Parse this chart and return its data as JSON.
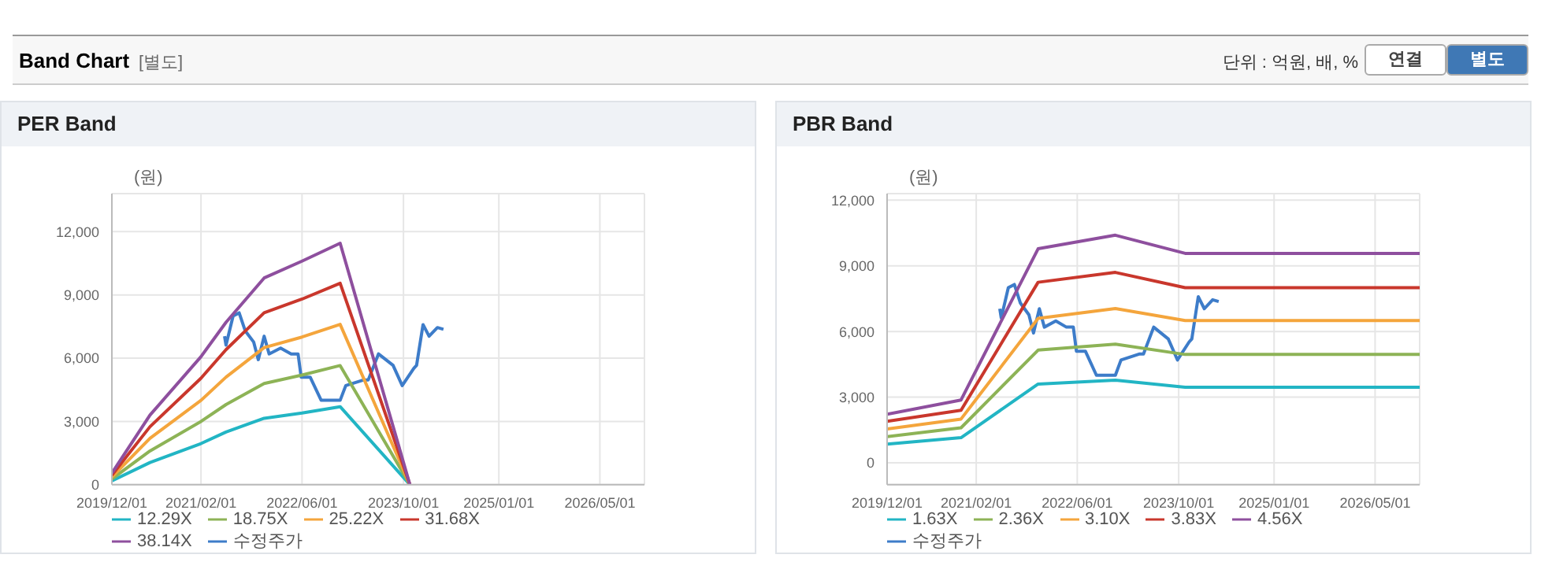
{
  "chart_data": [
    {
      "type": "line",
      "title": "PER Band",
      "ylabel": "(원)",
      "annotations": [
        "Band Chart",
        "[별도]",
        "단위 : 억원, 배, %",
        "연결",
        "별도"
      ],
      "grid": true,
      "legend": "bottom",
      "marker": "none",
      "line_style": "solid",
      "xlim": [
        "2019-12-01",
        "2026-12-01"
      ],
      "xticks": [
        {
          "value": "2019-12-01",
          "label": "2019/12/01"
        },
        {
          "value": "2021-02-01",
          "label": "2021/02/01"
        },
        {
          "value": "2022-06-01",
          "label": "2022/06/01"
        },
        {
          "value": "2023-10-01",
          "label": "2023/10/01"
        },
        {
          "value": "2025-01-01",
          "label": "2025/01/01"
        },
        {
          "value": "2026-05-01",
          "label": "2026/05/01"
        }
      ],
      "ylim": [
        0,
        13800
      ],
      "yticks": [
        0,
        {
          "value": 3000,
          "label": "3,000"
        },
        {
          "value": 6000,
          "label": "6,000"
        },
        {
          "value": 9000,
          "label": "9,000"
        },
        {
          "value": 12000,
          "label": "12,000"
        }
      ],
      "series": [
        {
          "name": "수정주가",
          "color": "#3d7cc9",
          "x": [
            "2021-05-25",
            "2021-06-01",
            "2021-07-05",
            "2021-08-03",
            "2021-09-01",
            "2021-10-12",
            "2021-11-03",
            "2021-12-01",
            "2021-12-25",
            "2022-02-18",
            "2022-04-10",
            "2022-05-13",
            "2022-05-28",
            "2022-07-10",
            "2022-09-01",
            "2022-12-01",
            "2022-12-28",
            "2023-03-25",
            "2023-04-15",
            "2023-06-03",
            "2023-08-12",
            "2023-09-25",
            "2023-11-20",
            "2023-12-03",
            "2024-01-03",
            "2024-02-01",
            "2024-03-12",
            "2024-04-10"
          ],
          "values": [
            7040,
            6620,
            8000,
            8150,
            7300,
            6760,
            5930,
            7040,
            6200,
            6480,
            6200,
            6200,
            5100,
            5100,
            4000,
            4000,
            4700,
            4970,
            4970,
            6200,
            5660,
            4700,
            5520,
            5660,
            7590,
            7040,
            7450,
            7370
          ]
        },
        {
          "name": "12.29X",
          "color": "#22b5c4",
          "x": [
            "2019-12-01",
            "2020-06-01",
            "2021-02-01",
            "2021-06-01",
            "2021-12-01",
            "2022-06-01",
            "2022-12-01",
            "2023-11-01"
          ],
          "values": [
            180,
            1050,
            1950,
            2500,
            3150,
            3400,
            3700,
            0
          ]
        },
        {
          "name": "18.75X",
          "color": "#8db356",
          "x": [
            "2019-12-01",
            "2020-06-01",
            "2021-02-01",
            "2021-06-01",
            "2021-12-01",
            "2022-06-01",
            "2022-12-01",
            "2023-11-01"
          ],
          "values": [
            270,
            1600,
            3000,
            3800,
            4800,
            5200,
            5650,
            0
          ]
        },
        {
          "name": "25.22X",
          "color": "#f4a53c",
          "x": [
            "2019-12-01",
            "2020-06-01",
            "2021-02-01",
            "2021-06-01",
            "2021-12-01",
            "2022-06-01",
            "2022-12-01",
            "2023-11-01"
          ],
          "values": [
            360,
            2200,
            4000,
            5100,
            6500,
            7000,
            7600,
            0
          ]
        },
        {
          "name": "31.68X",
          "color": "#c9372c",
          "x": [
            "2019-12-01",
            "2020-06-01",
            "2021-02-01",
            "2021-06-01",
            "2021-12-01",
            "2022-06-01",
            "2022-12-01",
            "2023-11-01"
          ],
          "values": [
            450,
            2750,
            5050,
            6400,
            8150,
            8800,
            9550,
            0
          ]
        },
        {
          "name": "38.14X",
          "color": "#8e4f9e",
          "x": [
            "2019-12-01",
            "2020-06-01",
            "2021-02-01",
            "2021-06-01",
            "2021-12-01",
            "2022-06-01",
            "2022-12-01",
            "2023-11-01"
          ],
          "values": [
            550,
            3300,
            6070,
            7700,
            9800,
            10600,
            11450,
            0
          ]
        }
      ]
    },
    {
      "type": "line",
      "title": "PBR Band",
      "ylabel": "(원)",
      "grid": true,
      "legend": "bottom",
      "marker": "none",
      "line_style": "solid",
      "xlim": [
        "2019-12-01",
        "2026-12-01"
      ],
      "xticks": [
        {
          "value": "2019-12-01",
          "label": "2019/12/01"
        },
        {
          "value": "2021-02-01",
          "label": "2021/02/01"
        },
        {
          "value": "2022-06-01",
          "label": "2022/06/01"
        },
        {
          "value": "2023-10-01",
          "label": "2023/10/01"
        },
        {
          "value": "2025-01-01",
          "label": "2025/01/01"
        },
        {
          "value": "2026-05-01",
          "label": "2026/05/01"
        }
      ],
      "ylim": [
        -1000,
        12300
      ],
      "yticks": [
        0,
        {
          "value": 3000,
          "label": "3,000"
        },
        {
          "value": 6000,
          "label": "6,000"
        },
        {
          "value": 9000,
          "label": "9,000"
        },
        {
          "value": 12000,
          "label": "12,000"
        }
      ],
      "series": [
        {
          "name": "수정주가",
          "color": "#3d7cc9",
          "x": [
            "2021-05-25",
            "2021-06-01",
            "2021-07-05",
            "2021-08-03",
            "2021-09-01",
            "2021-10-12",
            "2021-11-03",
            "2021-12-01",
            "2021-12-25",
            "2022-02-18",
            "2022-04-10",
            "2022-05-13",
            "2022-05-28",
            "2022-07-10",
            "2022-09-01",
            "2022-12-01",
            "2022-12-28",
            "2023-03-25",
            "2023-04-15",
            "2023-06-03",
            "2023-08-12",
            "2023-09-25",
            "2023-11-20",
            "2023-12-03",
            "2024-01-03",
            "2024-02-01",
            "2024-03-12",
            "2024-04-10"
          ],
          "values": [
            7040,
            6620,
            8000,
            8150,
            7300,
            6760,
            5930,
            7040,
            6200,
            6480,
            6200,
            6200,
            5100,
            5100,
            4000,
            4000,
            4700,
            4970,
            4970,
            6200,
            5660,
            4700,
            5520,
            5660,
            7590,
            7040,
            7450,
            7370
          ]
        },
        {
          "name": "1.63X",
          "color": "#22b5c4",
          "x": [
            "2019-12-01",
            "2020-11-20",
            "2021-11-25",
            "2022-12-01",
            "2023-11-01",
            "2026-12-01"
          ],
          "values": [
            850,
            1150,
            3600,
            3780,
            3450,
            3450
          ]
        },
        {
          "name": "2.36X",
          "color": "#8db356",
          "x": [
            "2019-12-01",
            "2020-11-20",
            "2021-11-25",
            "2022-12-01",
            "2023-11-01",
            "2026-12-01"
          ],
          "values": [
            1200,
            1600,
            5150,
            5420,
            4950,
            4950
          ]
        },
        {
          "name": "3.10X",
          "color": "#f4a53c",
          "x": [
            "2019-12-01",
            "2020-11-20",
            "2021-11-25",
            "2022-12-01",
            "2023-11-01",
            "2026-12-01"
          ],
          "values": [
            1550,
            2000,
            6600,
            7050,
            6500,
            6500
          ]
        },
        {
          "name": "3.83X",
          "color": "#c9372c",
          "x": [
            "2019-12-01",
            "2020-11-20",
            "2021-11-25",
            "2022-12-01",
            "2023-11-01",
            "2026-12-01"
          ],
          "values": [
            1900,
            2400,
            8250,
            8700,
            8000,
            8000
          ]
        },
        {
          "name": "4.56X",
          "color": "#8e4f9e",
          "x": [
            "2019-12-01",
            "2020-11-20",
            "2021-11-25",
            "2022-12-01",
            "2023-11-01",
            "2026-12-01"
          ],
          "values": [
            2220,
            2870,
            9780,
            10400,
            9570,
            9570
          ]
        }
      ]
    }
  ]
}
